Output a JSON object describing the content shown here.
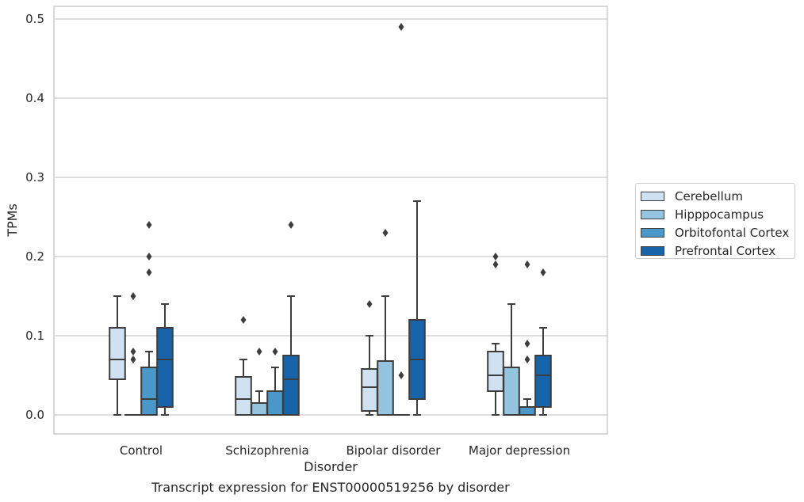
{
  "chart_data": {
    "type": "box",
    "caption": "Transcript expression for ENST00000519256 by disorder",
    "xlabel": "Disorder",
    "ylabel": "TPMs",
    "ylim": [
      -0.023,
      0.515
    ],
    "yticks": [
      "0.0",
      "0.1",
      "0.2",
      "0.3",
      "0.4",
      "0.5"
    ],
    "ytick_values": [
      0.0,
      0.1,
      0.2,
      0.3,
      0.4,
      0.5
    ],
    "categories": [
      "Control",
      "Schizophrenia",
      "Bipolar disorder",
      "Major depression"
    ],
    "grid": true,
    "legend_placement": "center-right outside",
    "series": [
      {
        "name": "Cerebellum",
        "color": "#d0e1f2",
        "boxes": [
          {
            "q1": 0.045,
            "median": 0.07,
            "q3": 0.11,
            "whisker_low": 0.0,
            "whisker_high": 0.15,
            "outliers": []
          },
          {
            "q1": 0.0,
            "median": 0.02,
            "q3": 0.048,
            "whisker_low": 0.0,
            "whisker_high": 0.07,
            "outliers": [
              0.12
            ]
          },
          {
            "q1": 0.005,
            "median": 0.035,
            "q3": 0.058,
            "whisker_low": 0.0,
            "whisker_high": 0.1,
            "outliers": [
              0.14
            ]
          },
          {
            "q1": 0.03,
            "median": 0.05,
            "q3": 0.08,
            "whisker_low": 0.0,
            "whisker_high": 0.09,
            "outliers": [
              0.19,
              0.2
            ]
          }
        ]
      },
      {
        "name": "Hipppocampus",
        "color": "#94c4df",
        "boxes": [
          {
            "q1": 0.0,
            "median": 0.0,
            "q3": 0.0,
            "whisker_low": 0.0,
            "whisker_high": 0.0,
            "outliers": [
              0.07,
              0.08,
              0.15
            ]
          },
          {
            "q1": 0.0,
            "median": 0.0,
            "q3": 0.015,
            "whisker_low": 0.0,
            "whisker_high": 0.03,
            "outliers": [
              0.08
            ]
          },
          {
            "q1": 0.0,
            "median": 0.0,
            "q3": 0.068,
            "whisker_low": 0.0,
            "whisker_high": 0.15,
            "outliers": [
              0.23
            ]
          },
          {
            "q1": 0.0,
            "median": 0.0,
            "q3": 0.06,
            "whisker_low": 0.0,
            "whisker_high": 0.14,
            "outliers": []
          }
        ]
      },
      {
        "name": "Orbitofontal Cortex",
        "color": "#4a98c9",
        "boxes": [
          {
            "q1": 0.0,
            "median": 0.02,
            "q3": 0.06,
            "whisker_low": 0.0,
            "whisker_high": 0.08,
            "outliers": [
              0.18,
              0.2,
              0.24
            ]
          },
          {
            "q1": 0.0,
            "median": 0.0,
            "q3": 0.03,
            "whisker_low": 0.0,
            "whisker_high": 0.06,
            "outliers": [
              0.08
            ]
          },
          {
            "q1": 0.0,
            "median": 0.0,
            "q3": 0.0,
            "whisker_low": 0.0,
            "whisker_high": 0.0,
            "outliers": [
              0.05,
              0.49
            ]
          },
          {
            "q1": 0.0,
            "median": 0.0,
            "q3": 0.01,
            "whisker_low": 0.0,
            "whisker_high": 0.02,
            "outliers": [
              0.07,
              0.09,
              0.19
            ]
          }
        ]
      },
      {
        "name": "Prefrontal Cortex",
        "color": "#1764ab",
        "boxes": [
          {
            "q1": 0.01,
            "median": 0.07,
            "q3": 0.11,
            "whisker_low": 0.0,
            "whisker_high": 0.14,
            "outliers": []
          },
          {
            "q1": 0.0,
            "median": 0.045,
            "q3": 0.075,
            "whisker_low": 0.0,
            "whisker_high": 0.15,
            "outliers": [
              0.24
            ]
          },
          {
            "q1": 0.02,
            "median": 0.07,
            "q3": 0.12,
            "whisker_low": 0.0,
            "whisker_high": 0.27,
            "outliers": []
          },
          {
            "q1": 0.01,
            "median": 0.05,
            "q3": 0.075,
            "whisker_low": 0.0,
            "whisker_high": 0.11,
            "outliers": [
              0.18
            ]
          }
        ]
      }
    ]
  }
}
